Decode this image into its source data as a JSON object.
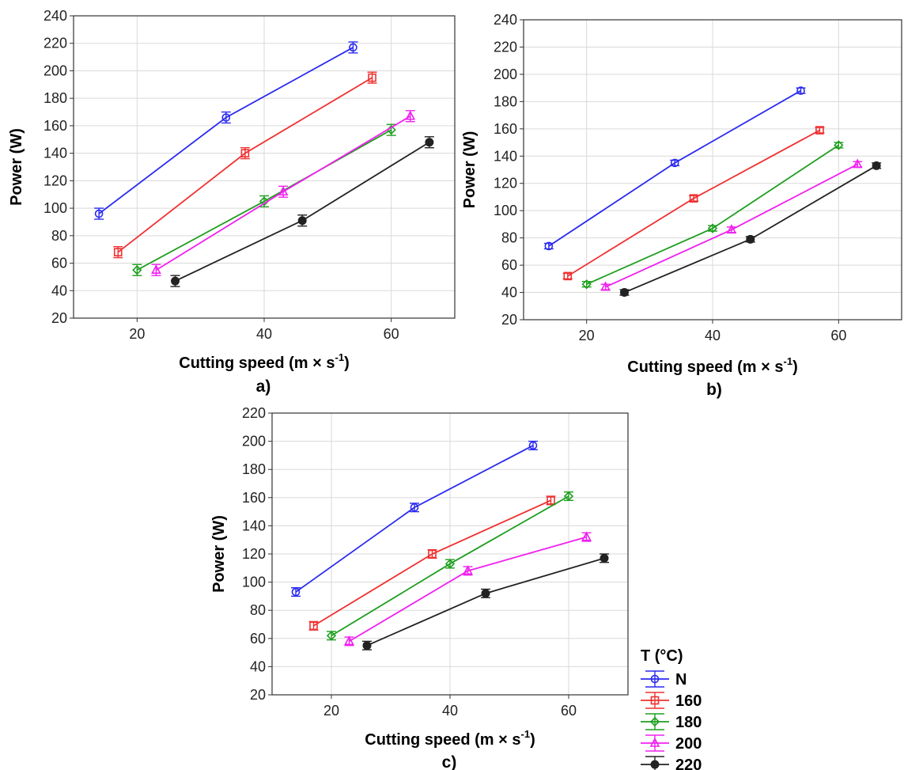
{
  "chart_data": [
    {
      "type": "line",
      "panel_label": "a)",
      "xlabel_main": "Cutting speed (m × s",
      "xlabel_sup": "-1",
      "xlabel_end": ")",
      "ylabel": "Power (W)",
      "xlim": [
        10,
        70
      ],
      "ylim": [
        20,
        240
      ],
      "xticks": [
        20,
        40,
        60
      ],
      "yticks": [
        20,
        40,
        60,
        80,
        100,
        120,
        140,
        160,
        180,
        200,
        220,
        240
      ],
      "grid": true,
      "series": [
        {
          "name": "N",
          "color": "#2a2af0",
          "marker": "circle-open",
          "x": [
            14,
            34,
            54
          ],
          "y": [
            96,
            166,
            217
          ],
          "err": [
            4,
            4,
            4
          ]
        },
        {
          "name": "160",
          "color": "#f03030",
          "marker": "square-open",
          "x": [
            17,
            37,
            57
          ],
          "y": [
            68,
            140,
            195
          ],
          "err": [
            4,
            4,
            4
          ]
        },
        {
          "name": "180",
          "color": "#1e9e1e",
          "marker": "diamond-open",
          "x": [
            20,
            40,
            60
          ],
          "y": [
            55,
            105,
            157
          ],
          "err": [
            4,
            4,
            4
          ]
        },
        {
          "name": "200",
          "color": "#f020f0",
          "marker": "triangle-open",
          "x": [
            23,
            43,
            63
          ],
          "y": [
            55,
            112,
            167
          ],
          "err": [
            4,
            4,
            4
          ]
        },
        {
          "name": "220",
          "color": "#222222",
          "marker": "circle-filled",
          "x": [
            26,
            46,
            66
          ],
          "y": [
            47,
            91,
            148
          ],
          "err": [
            4,
            4,
            4
          ]
        }
      ]
    },
    {
      "type": "line",
      "panel_label": "b)",
      "xlabel_main": "Cutting speed (m × s",
      "xlabel_sup": "-1",
      "xlabel_end": ")",
      "ylabel": "Power (W)",
      "xlim": [
        10,
        70
      ],
      "ylim": [
        20,
        240
      ],
      "xticks": [
        20,
        40,
        60
      ],
      "yticks": [
        20,
        40,
        60,
        80,
        100,
        120,
        140,
        160,
        180,
        200,
        220,
        240
      ],
      "grid": true,
      "series": [
        {
          "name": "N",
          "color": "#2a2af0",
          "marker": "circle-open",
          "x": [
            14,
            34,
            54
          ],
          "y": [
            74,
            135,
            188
          ],
          "err": [
            2,
            2,
            2
          ]
        },
        {
          "name": "160",
          "color": "#f03030",
          "marker": "square-open",
          "x": [
            17,
            37,
            57
          ],
          "y": [
            52,
            109,
            159
          ],
          "err": [
            2,
            2,
            2
          ]
        },
        {
          "name": "180",
          "color": "#1e9e1e",
          "marker": "diamond-open",
          "x": [
            20,
            40,
            60
          ],
          "y": [
            46,
            87,
            148
          ],
          "err": [
            2,
            2,
            2
          ]
        },
        {
          "name": "200",
          "color": "#f020f0",
          "marker": "triangle-open",
          "x": [
            23,
            43,
            63
          ],
          "y": [
            44,
            86,
            134
          ],
          "err": [
            2,
            2,
            2
          ]
        },
        {
          "name": "220",
          "color": "#222222",
          "marker": "circle-filled",
          "x": [
            26,
            46,
            66
          ],
          "y": [
            40,
            79,
            133
          ],
          "err": [
            2,
            2,
            2
          ]
        }
      ]
    },
    {
      "type": "line",
      "panel_label": "c)",
      "xlabel_main": "Cutting speed (m × s",
      "xlabel_sup": "-1",
      "xlabel_end": ")",
      "ylabel": "Power (W)",
      "xlim": [
        10,
        70
      ],
      "ylim": [
        20,
        220
      ],
      "xticks": [
        20,
        40,
        60
      ],
      "yticks": [
        20,
        40,
        60,
        80,
        100,
        120,
        140,
        160,
        180,
        200,
        220
      ],
      "grid": true,
      "series": [
        {
          "name": "N",
          "color": "#2a2af0",
          "marker": "circle-open",
          "x": [
            14,
            34,
            54
          ],
          "y": [
            93,
            153,
            197
          ],
          "err": [
            3,
            3,
            3
          ]
        },
        {
          "name": "160",
          "color": "#f03030",
          "marker": "square-open",
          "x": [
            17,
            37,
            57
          ],
          "y": [
            69,
            120,
            158
          ],
          "err": [
            3,
            3,
            3
          ]
        },
        {
          "name": "180",
          "color": "#1e9e1e",
          "marker": "diamond-open",
          "x": [
            20,
            40,
            60
          ],
          "y": [
            62,
            113,
            161
          ],
          "err": [
            3,
            3,
            3
          ]
        },
        {
          "name": "200",
          "color": "#f020f0",
          "marker": "triangle-open",
          "x": [
            23,
            43,
            63
          ],
          "y": [
            58,
            108,
            132
          ],
          "err": [
            3,
            3,
            3
          ]
        },
        {
          "name": "220",
          "color": "#222222",
          "marker": "circle-filled",
          "x": [
            26,
            46,
            66
          ],
          "y": [
            55,
            92,
            117
          ],
          "err": [
            3,
            3,
            3
          ]
        }
      ]
    }
  ],
  "legend": {
    "title": "T (°C)",
    "placement": "bottom-right",
    "items": [
      {
        "label": "N",
        "color": "#2a2af0",
        "marker": "circle-open"
      },
      {
        "label": "160",
        "color": "#f03030",
        "marker": "square-open"
      },
      {
        "label": "180",
        "color": "#1e9e1e",
        "marker": "diamond-open"
      },
      {
        "label": "200",
        "color": "#f020f0",
        "marker": "triangle-open"
      },
      {
        "label": "220",
        "color": "#222222",
        "marker": "circle-filled"
      }
    ]
  }
}
